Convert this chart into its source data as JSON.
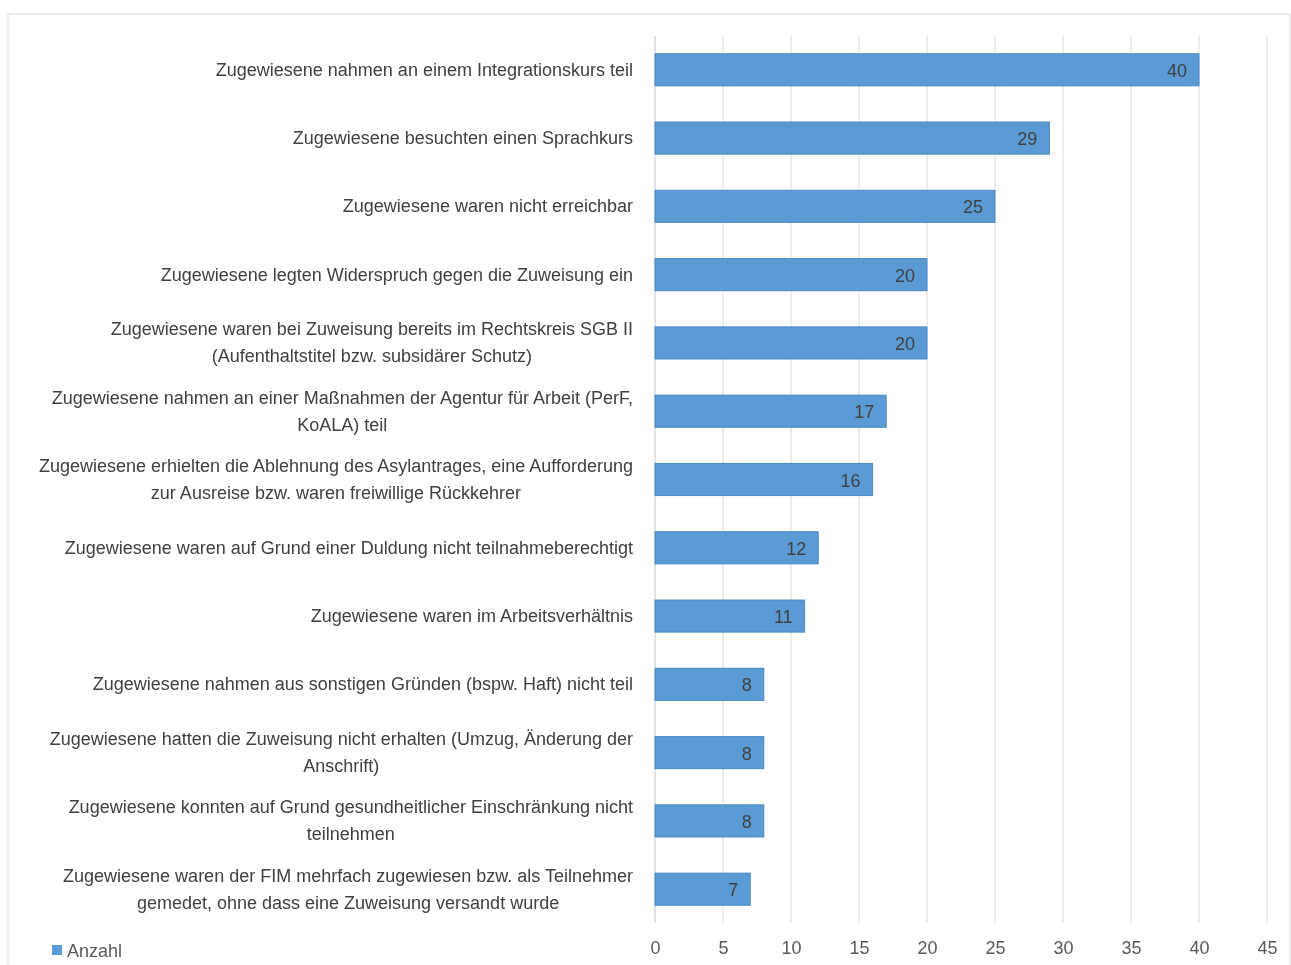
{
  "chart_data": {
    "type": "bar",
    "orientation": "horizontal",
    "categories": [
      "Zugewiesene nahmen an einem Integrationskurs teil",
      "Zugewiesene besuchten einen Sprachkurs",
      "Zugewiesene waren nicht erreichbar",
      "Zugewiesene legten Widerspruch gegen die Zuweisung ein",
      "Zugewiesene waren bei Zuweisung bereits im Rechtskreis SGB II (Aufenthaltstitel bzw. subsidärer Schutz)",
      "Zugewiesene nahmen an einer Maßnahmen der Agentur für Arbeit (PerF, KoALA) teil",
      "Zugewiesene erhielten die Ablehnung des Asylantrages, eine Aufforderung zur Ausreise bzw. waren freiwillige Rückkehrer",
      "Zugewiesene waren auf Grund einer Duldung nicht teilnahmeberechtigt",
      "Zugewiesene waren im Arbeitsverhältnis",
      "Zugewiesene nahmen aus sonstigen Gründen (bspw. Haft) nicht teil",
      "Zugewiesene hatten die Zuweisung nicht erhalten (Umzug, Änderung der Anschrift)",
      "Zugewiesene konnten auf Grund gesundheitlicher Einschränkung nicht teilnehmen",
      "Zugewiesene  waren der FIM mehrfach zugewiesen bzw. als Teilnehmer gemedet, ohne dass eine Zuweisung versandt wurde"
    ],
    "series": [
      {
        "name": "Anzahl",
        "color": "#5b9bd5",
        "values": [
          40,
          29,
          25,
          20,
          20,
          17,
          16,
          12,
          11,
          8,
          8,
          8,
          7
        ]
      }
    ],
    "xlim": [
      0,
      45
    ],
    "xticks": [
      0,
      5,
      10,
      15,
      20,
      25,
      30,
      35,
      40,
      45
    ],
    "grid": "x",
    "legend": "bottom left",
    "data_labels": true
  }
}
